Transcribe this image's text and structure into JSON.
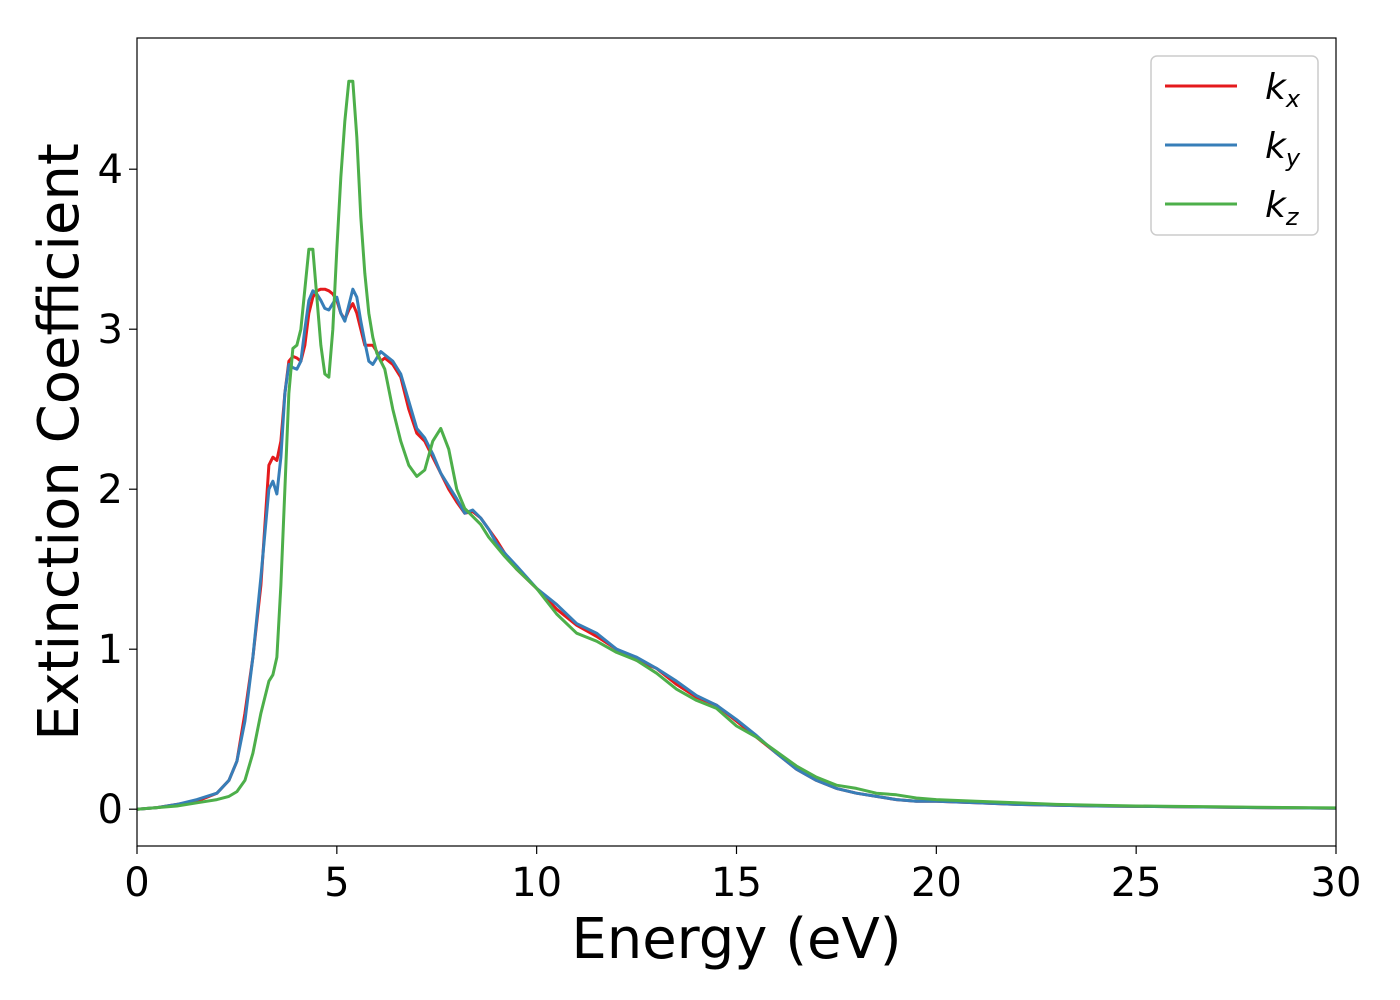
{
  "chart_data": {
    "type": "line",
    "xlabel": "Energy (eV)",
    "ylabel": "Extinction Coefficient",
    "xlim": [
      0,
      30
    ],
    "ylim": [
      -0.23,
      4.82
    ],
    "xticks": [
      0,
      5,
      10,
      15,
      20,
      25,
      30
    ],
    "yticks": [
      0,
      1,
      2,
      3,
      4
    ],
    "xtick_labels": [
      "0",
      "5",
      "10",
      "15",
      "20",
      "25",
      "30"
    ],
    "ytick_labels": [
      "0",
      "1",
      "2",
      "3",
      "4"
    ],
    "grid": false,
    "legend_position": "top-right",
    "series": [
      {
        "name": "k",
        "subscript": "x",
        "color": "#e41a1c",
        "x": [
          0,
          0.5,
          1,
          1.5,
          2,
          2.3,
          2.5,
          2.7,
          2.9,
          3.1,
          3.3,
          3.4,
          3.5,
          3.6,
          3.7,
          3.8,
          3.9,
          4.0,
          4.1,
          4.2,
          4.3,
          4.4,
          4.5,
          4.6,
          4.7,
          4.8,
          4.9,
          5.0,
          5.1,
          5.2,
          5.3,
          5.4,
          5.5,
          5.6,
          5.7,
          5.8,
          5.9,
          6.0,
          6.1,
          6.2,
          6.4,
          6.6,
          6.8,
          7.0,
          7.2,
          7.4,
          7.6,
          7.8,
          8.0,
          8.2,
          8.4,
          8.6,
          8.8,
          9.0,
          9.2,
          9.5,
          10,
          10.5,
          11,
          11.5,
          12,
          12.5,
          13,
          13.5,
          14,
          14.5,
          15,
          15.5,
          16,
          16.5,
          17,
          17.5,
          18,
          18.5,
          19,
          19.5,
          20,
          21,
          22,
          23,
          24,
          25,
          26,
          27,
          28,
          29,
          30
        ],
        "y": [
          0,
          0.01,
          0.03,
          0.05,
          0.1,
          0.18,
          0.3,
          0.6,
          0.95,
          1.4,
          2.15,
          2.2,
          2.18,
          2.3,
          2.6,
          2.8,
          2.83,
          2.82,
          2.8,
          2.9,
          3.1,
          3.2,
          3.24,
          3.25,
          3.25,
          3.24,
          3.22,
          3.18,
          3.1,
          3.06,
          3.12,
          3.16,
          3.1,
          3.0,
          2.9,
          2.9,
          2.9,
          2.86,
          2.8,
          2.82,
          2.78,
          2.7,
          2.5,
          2.35,
          2.3,
          2.2,
          2.1,
          2.0,
          1.92,
          1.85,
          1.86,
          1.82,
          1.75,
          1.68,
          1.6,
          1.5,
          1.38,
          1.25,
          1.15,
          1.08,
          1.0,
          0.93,
          0.88,
          0.78,
          0.7,
          0.65,
          0.55,
          0.45,
          0.35,
          0.25,
          0.18,
          0.13,
          0.1,
          0.08,
          0.06,
          0.05,
          0.05,
          0.04,
          0.03,
          0.025,
          0.02,
          0.018,
          0.015,
          0.013,
          0.01,
          0.008,
          0.006
        ]
      },
      {
        "name": "k",
        "subscript": "y",
        "color": "#377eb8",
        "x": [
          0,
          0.5,
          1,
          1.5,
          2,
          2.3,
          2.5,
          2.7,
          2.9,
          3.1,
          3.3,
          3.4,
          3.5,
          3.6,
          3.7,
          3.8,
          3.9,
          4.0,
          4.1,
          4.2,
          4.3,
          4.4,
          4.5,
          4.6,
          4.7,
          4.8,
          4.9,
          5.0,
          5.1,
          5.2,
          5.3,
          5.4,
          5.5,
          5.6,
          5.7,
          5.8,
          5.9,
          6.0,
          6.1,
          6.2,
          6.4,
          6.6,
          6.8,
          7.0,
          7.2,
          7.4,
          7.6,
          7.8,
          8.0,
          8.2,
          8.4,
          8.6,
          8.8,
          9.0,
          9.2,
          9.5,
          10,
          10.5,
          11,
          11.5,
          12,
          12.5,
          13,
          13.5,
          14,
          14.5,
          15,
          15.5,
          16,
          16.5,
          17,
          17.5,
          18,
          18.5,
          19,
          19.5,
          20,
          21,
          22,
          23,
          24,
          25,
          26,
          27,
          28,
          29,
          30
        ],
        "y": [
          0,
          0.01,
          0.03,
          0.06,
          0.1,
          0.18,
          0.3,
          0.55,
          0.95,
          1.45,
          2.0,
          2.05,
          1.97,
          2.2,
          2.6,
          2.78,
          2.76,
          2.75,
          2.8,
          3.0,
          3.18,
          3.24,
          3.22,
          3.18,
          3.13,
          3.12,
          3.16,
          3.2,
          3.1,
          3.05,
          3.15,
          3.25,
          3.2,
          3.05,
          2.92,
          2.8,
          2.78,
          2.82,
          2.86,
          2.84,
          2.8,
          2.72,
          2.55,
          2.38,
          2.32,
          2.22,
          2.1,
          2.02,
          1.94,
          1.85,
          1.87,
          1.82,
          1.75,
          1.66,
          1.6,
          1.52,
          1.38,
          1.28,
          1.16,
          1.1,
          1.0,
          0.95,
          0.88,
          0.8,
          0.71,
          0.65,
          0.56,
          0.46,
          0.35,
          0.25,
          0.18,
          0.13,
          0.1,
          0.08,
          0.06,
          0.05,
          0.05,
          0.04,
          0.03,
          0.025,
          0.02,
          0.018,
          0.015,
          0.013,
          0.01,
          0.008,
          0.006
        ]
      },
      {
        "name": "k",
        "subscript": "z",
        "color": "#4daf4a",
        "x": [
          0,
          0.5,
          1,
          1.5,
          2,
          2.3,
          2.5,
          2.7,
          2.9,
          3.1,
          3.3,
          3.4,
          3.5,
          3.6,
          3.7,
          3.8,
          3.9,
          4.0,
          4.1,
          4.2,
          4.3,
          4.4,
          4.5,
          4.6,
          4.7,
          4.8,
          4.9,
          5.0,
          5.1,
          5.2,
          5.3,
          5.4,
          5.5,
          5.6,
          5.7,
          5.8,
          5.9,
          6.0,
          6.1,
          6.2,
          6.4,
          6.6,
          6.8,
          7.0,
          7.2,
          7.4,
          7.6,
          7.8,
          8.0,
          8.2,
          8.4,
          8.6,
          8.8,
          9.0,
          9.2,
          9.5,
          10,
          10.5,
          11,
          11.5,
          12,
          12.5,
          13,
          13.5,
          14,
          14.5,
          15,
          15.5,
          16,
          16.5,
          17,
          17.5,
          18,
          18.5,
          19,
          19.5,
          20,
          21,
          22,
          23,
          24,
          25,
          26,
          27,
          28,
          29,
          30
        ],
        "y": [
          0,
          0.01,
          0.02,
          0.04,
          0.06,
          0.08,
          0.11,
          0.18,
          0.35,
          0.6,
          0.8,
          0.84,
          0.95,
          1.4,
          2.0,
          2.6,
          2.88,
          2.9,
          3.0,
          3.25,
          3.5,
          3.5,
          3.2,
          2.9,
          2.72,
          2.7,
          3.0,
          3.5,
          3.95,
          4.3,
          4.55,
          4.55,
          4.2,
          3.7,
          3.35,
          3.1,
          2.95,
          2.85,
          2.8,
          2.75,
          2.5,
          2.3,
          2.15,
          2.08,
          2.12,
          2.3,
          2.38,
          2.25,
          2.0,
          1.88,
          1.83,
          1.78,
          1.7,
          1.64,
          1.58,
          1.5,
          1.38,
          1.22,
          1.1,
          1.05,
          0.98,
          0.93,
          0.85,
          0.75,
          0.68,
          0.63,
          0.52,
          0.45,
          0.36,
          0.27,
          0.2,
          0.15,
          0.13,
          0.1,
          0.09,
          0.07,
          0.06,
          0.05,
          0.04,
          0.03,
          0.025,
          0.02,
          0.018,
          0.015,
          0.012,
          0.01,
          0.008
        ]
      }
    ]
  }
}
